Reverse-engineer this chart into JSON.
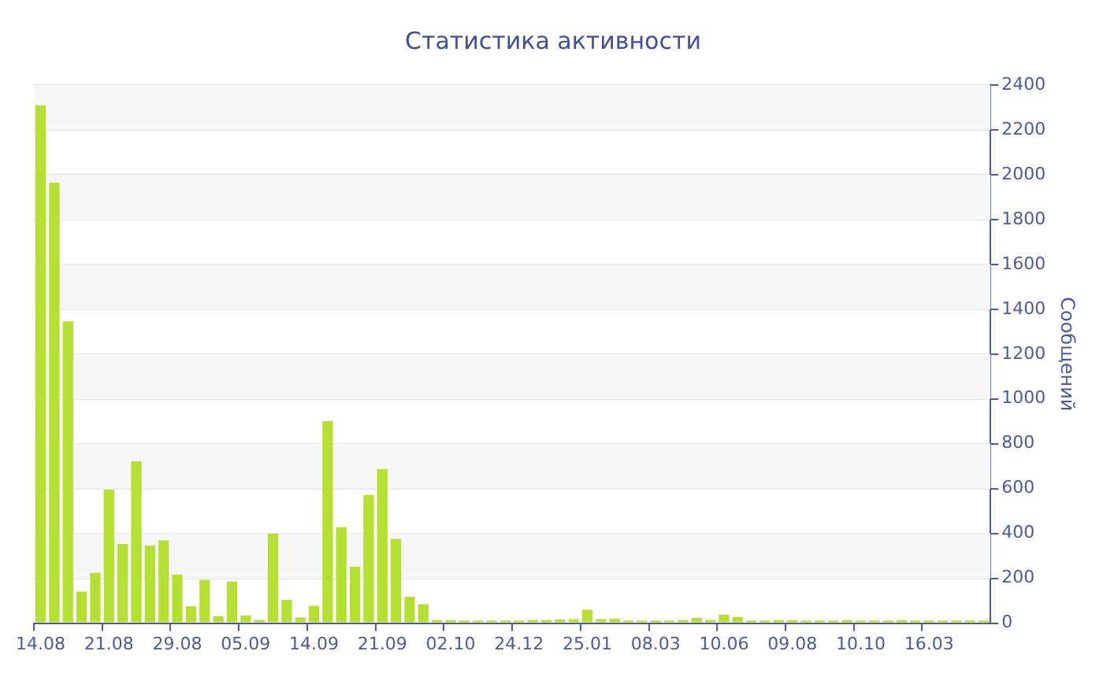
{
  "chart_data": {
    "type": "bar",
    "title": "Статистика активности",
    "ylabel": "Сообщений",
    "categories": [
      "14.08",
      null,
      null,
      null,
      null,
      "21.08",
      null,
      null,
      null,
      null,
      "29.08",
      null,
      null,
      null,
      null,
      "05.09",
      null,
      null,
      null,
      null,
      "14.09",
      null,
      null,
      null,
      null,
      "21.09",
      null,
      null,
      null,
      null,
      "02.10",
      null,
      null,
      null,
      null,
      "24.12",
      null,
      null,
      null,
      null,
      "25.01",
      null,
      null,
      null,
      null,
      "08.03",
      null,
      null,
      null,
      null,
      "10.06",
      null,
      null,
      null,
      null,
      "09.08",
      null,
      null,
      null,
      null,
      "10.10",
      null,
      null,
      null,
      null,
      "16.03",
      null,
      null,
      null,
      null
    ],
    "values": [
      2310,
      1965,
      1346,
      141,
      224,
      595,
      353,
      722,
      346,
      369,
      216,
      75,
      193,
      31,
      186,
      35,
      14,
      400,
      104,
      26,
      78,
      901,
      428,
      252,
      572,
      687,
      376,
      118,
      85,
      14,
      14,
      12,
      12,
      12,
      12,
      12,
      14,
      14,
      16,
      18,
      60,
      18,
      20,
      12,
      12,
      12,
      12,
      14,
      24,
      14,
      38,
      28,
      12,
      12,
      14,
      14,
      12,
      12,
      12,
      14,
      12,
      12,
      12,
      14,
      12,
      12,
      12,
      12,
      12,
      12
    ],
    "color": "#b5e032",
    "ylim": [
      0,
      2400
    ],
    "yticks": [
      0,
      200,
      400,
      600,
      800,
      1000,
      1200,
      1400,
      1600,
      1800,
      2000,
      2200,
      2400
    ],
    "grid": "y",
    "legend": false
  }
}
